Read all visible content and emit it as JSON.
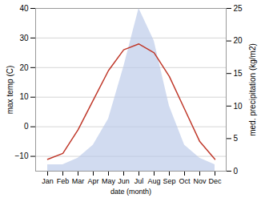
{
  "chart_data": {
    "type": "line",
    "xlabel": "date (month)",
    "ylabel": "max temp (C)",
    "y2label": "med. precipitation (kg/m2)",
    "categories": [
      "Jan",
      "Feb",
      "Mar",
      "Apr",
      "May",
      "Jun",
      "Jul",
      "Aug",
      "Sep",
      "Oct",
      "Nov",
      "Dec"
    ],
    "series": [
      {
        "type": "area",
        "axis": "y2",
        "color": "#b8c8e8",
        "values": [
          1,
          1,
          2,
          4,
          8,
          16,
          25,
          20,
          10,
          4,
          2,
          1
        ]
      },
      {
        "type": "line",
        "color": "#c0392b",
        "values": [
          -11,
          -9,
          -1,
          9,
          19,
          26,
          28,
          25,
          17,
          6,
          -5,
          -11
        ]
      }
    ],
    "ylim": [
      -15,
      40
    ],
    "yticks": [
      -10,
      0,
      10,
      20,
      30,
      40
    ],
    "y2lim": [
      0,
      25
    ],
    "y2ticks": [
      0,
      5,
      10,
      15,
      20,
      25
    ],
    "grid": true
  }
}
